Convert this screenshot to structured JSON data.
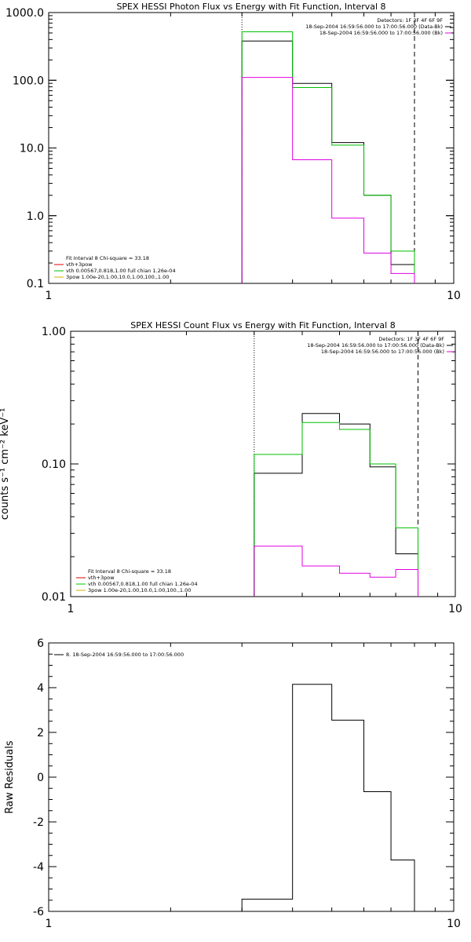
{
  "chart_data": [
    {
      "type": "line",
      "title": "SPEX HESSI Photon Flux vs Energy with Fit Function, Interval 8",
      "ylabel": "",
      "xlabel": "",
      "x_scale": "log",
      "y_scale": "log",
      "xlim": [
        1,
        10
      ],
      "ylim": [
        0.1,
        1000
      ],
      "x_ticks": [
        "1",
        "10"
      ],
      "x_tick_values": [
        1,
        10
      ],
      "y_ticks": [
        "0.1",
        "1.0",
        "10.0",
        "100.0",
        "1000.0"
      ],
      "y_tick_values": [
        0.1,
        1,
        10,
        100,
        1000
      ],
      "vlines": [
        {
          "x": 3.0,
          "style": "dotted",
          "color": "#000000"
        },
        {
          "x": 8.0,
          "style": "dashed",
          "color": "#000000"
        }
      ],
      "edges": [
        3.0,
        4.0,
        5.0,
        6.0,
        7.0,
        8.0
      ],
      "series": [
        {
          "values": [
            380,
            90,
            12,
            2.0,
            0.19
          ],
          "color": "#000000"
        },
        {
          "values": [
            520,
            78,
            11,
            2.0,
            0.3
          ],
          "color": "#00c000"
        },
        {
          "values": [
            110,
            6.7,
            0.92,
            0.28,
            0.14
          ],
          "color": "#e000e0"
        }
      ],
      "legend_top_right": [
        {
          "text": "Detectors: 1F 3F 4F 6F 9F",
          "color": "",
          "line": false
        },
        {
          "text": "18-Sep-2004 16:59:56.000 to 17:00:56.000 (Data-Bk)",
          "color": "#000000",
          "line": true
        },
        {
          "text": "18-Sep-2004 16:59:56.000 to 17:00:56.000 (Bk)",
          "color": "#e000e0",
          "line": true
        }
      ],
      "legend_bottom_left": [
        {
          "text": "Fit Interval 8    Chi-square = 33.18",
          "color": "",
          "line": false
        },
        {
          "text": "vth+3pow",
          "color": "#e00000",
          "line": true
        },
        {
          "text": "vth 0.00567,0.818,1.00   full chian 1.26e-04",
          "color": "#00c000",
          "line": true
        },
        {
          "text": "3pow 1.00e-20,1.00,10.0,1.00,100.,1.00",
          "color": "#d0b000",
          "line": true
        }
      ]
    },
    {
      "type": "line",
      "title": "SPEX HESSI Count Flux vs Energy with Fit Function, Interval 8",
      "ylabel": "counts s⁻¹ cm⁻² keV⁻¹",
      "xlabel": "",
      "x_scale": "log",
      "y_scale": "log",
      "xlim": [
        1,
        10
      ],
      "ylim": [
        0.01,
        1
      ],
      "x_ticks": [
        "1",
        "10"
      ],
      "x_tick_values": [
        1,
        10
      ],
      "y_ticks": [
        "0.01",
        "0.10",
        "1.00"
      ],
      "y_tick_values": [
        0.01,
        0.1,
        1
      ],
      "vlines": [
        {
          "x": 3.0,
          "style": "dotted",
          "color": "#000000"
        },
        {
          "x": 8.0,
          "style": "dashed",
          "color": "#000000"
        }
      ],
      "edges": [
        3.0,
        4.0,
        5.0,
        6.0,
        7.0,
        8.0
      ],
      "series": [
        {
          "values": [
            0.085,
            0.24,
            0.2,
            0.095,
            0.021
          ],
          "color": "#000000"
        },
        {
          "values": [
            0.118,
            0.205,
            0.182,
            0.1,
            0.033
          ],
          "color": "#00c000"
        },
        {
          "values": [
            0.024,
            0.017,
            0.015,
            0.014,
            0.016
          ],
          "color": "#e000e0"
        }
      ],
      "legend_top_right": [
        {
          "text": "Detectors: 1F 3F 4F 6F 9F",
          "color": "",
          "line": false
        },
        {
          "text": "18-Sep-2004 16:59:56.000 to 17:00:56.000 (Data-Bk)",
          "color": "#000000",
          "line": true
        },
        {
          "text": "18-Sep-2004 16:59:56.000 to 17:00:56.000 (Bk)",
          "color": "#e000e0",
          "line": true
        }
      ],
      "legend_bottom_left": [
        {
          "text": "Fit Interval 8    Chi-square = 33.18",
          "color": "",
          "line": false
        },
        {
          "text": "vth+3pow",
          "color": "#e00000",
          "line": true
        },
        {
          "text": "vth 0.00567,0.818,1.00   full chian 1.26e-04",
          "color": "#00c000",
          "line": true
        },
        {
          "text": "3pow 1.00e-20,1.00,10.0,1.00,100.,1.00",
          "color": "#d0b000",
          "line": true
        }
      ]
    },
    {
      "type": "line",
      "title": "",
      "ylabel": "Raw Residuals",
      "xlabel": "",
      "x_scale": "log",
      "y_scale": "linear",
      "xlim": [
        1,
        10
      ],
      "ylim": [
        -6,
        6
      ],
      "x_ticks": [
        "1",
        "10"
      ],
      "x_tick_values": [
        1,
        10
      ],
      "y_ticks": [
        "-6",
        "-4",
        "-2",
        "0",
        "2",
        "4",
        "6"
      ],
      "y_tick_values": [
        -6,
        -4,
        -2,
        0,
        2,
        4,
        6
      ],
      "vlines": [],
      "edges": [
        3.0,
        4.0,
        5.0,
        6.0,
        7.0,
        8.0
      ],
      "series": [
        {
          "values": [
            -5.45,
            4.15,
            2.55,
            -0.65,
            -3.7
          ],
          "color": "#000000"
        }
      ],
      "legend_top_right": [],
      "legend_bottom_left": [],
      "legend_top_left": [
        {
          "text": "8. 18-Sep-2004 16:59:56.000 to 17:00:56.000",
          "color": "#000000",
          "line": true
        }
      ]
    }
  ]
}
